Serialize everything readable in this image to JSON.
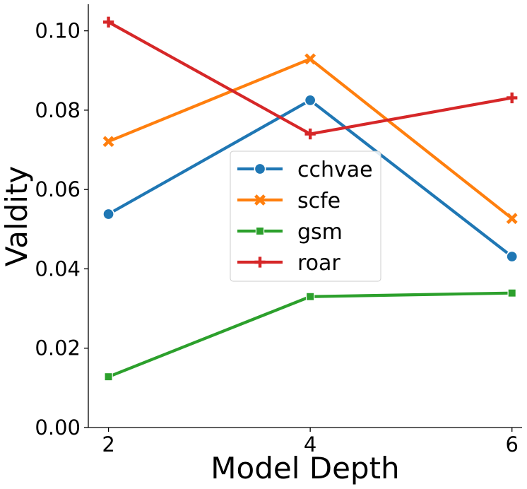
{
  "chart_data": {
    "type": "line",
    "title": "",
    "xlabel": "Model Depth",
    "ylabel": "Valdity",
    "x": [
      2,
      4,
      6
    ],
    "x_ticks": [
      "2",
      "4",
      "6"
    ],
    "y_ticks": [
      "0.00",
      "0.02",
      "0.04",
      "0.06",
      "0.08",
      "0.10"
    ],
    "xlim": [
      1.8,
      6.1
    ],
    "ylim": [
      0.0,
      0.1067
    ],
    "grid": false,
    "legend_position": "center",
    "series": [
      {
        "name": "cchvae",
        "values": [
          0.0538,
          0.0825,
          0.0431
        ],
        "color": "#1f77b4",
        "marker": "circle"
      },
      {
        "name": "scfe",
        "values": [
          0.0721,
          0.0929,
          0.0527
        ],
        "color": "#ff7f0e",
        "marker": "x"
      },
      {
        "name": "gsm",
        "values": [
          0.0128,
          0.033,
          0.0339
        ],
        "color": "#2ca02c",
        "marker": "square"
      },
      {
        "name": "roar",
        "values": [
          0.1022,
          0.074,
          0.0831
        ],
        "color": "#d62728",
        "marker": "plus"
      }
    ]
  }
}
